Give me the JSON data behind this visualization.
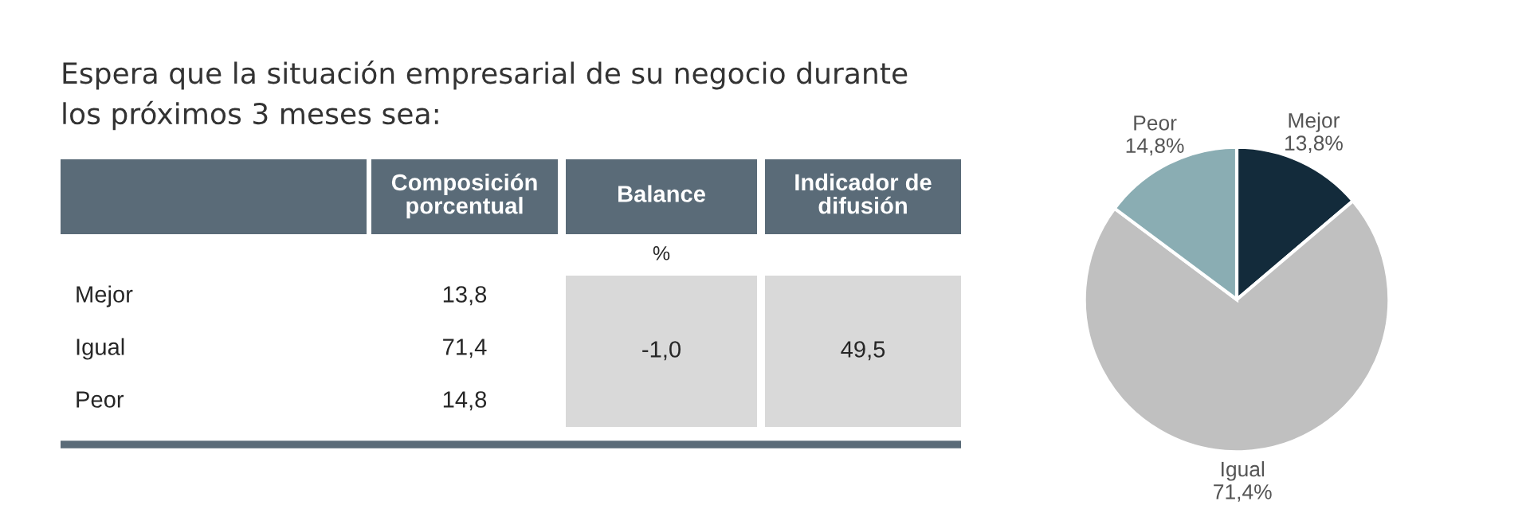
{
  "chart_data": [
    {
      "type": "other",
      "title": "Espera que la situación empresarial de su negocio durante\nlos próximos 3 meses sea:",
      "annotations": [
        "Composición\nporcentual",
        "Balance",
        "Indicador de\ndifusión",
        "%",
        "Mejor",
        "Igual",
        "Peor",
        "13,8",
        "71,4",
        "14,8",
        "-1,0",
        "49,5"
      ]
    },
    {
      "type": "pie",
      "categories": [
        "Mejor",
        "Igual",
        "Peor"
      ],
      "values": [
        13.8,
        71.4,
        14.8
      ],
      "colors": [
        "#132b3b",
        "#c0c0c0",
        "#8aadb3"
      ],
      "value_labels": [
        "13,8%",
        "71,4%",
        "14,8%"
      ]
    }
  ]
}
